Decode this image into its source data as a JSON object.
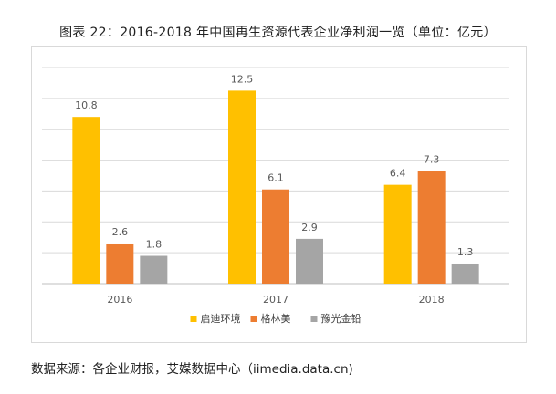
{
  "chart_data": {
    "type": "bar",
    "title": "图表 22：2016-2018 年中国再生资源代表企业净利润一览（单位：亿元）",
    "categories": [
      "2016",
      "2017",
      "2018"
    ],
    "series": [
      {
        "name": "启迪环境",
        "values": [
          10.8,
          12.5,
          6.4
        ],
        "color": "#FFC000"
      },
      {
        "name": "格林美",
        "values": [
          2.6,
          6.1,
          7.3
        ],
        "color": "#ED7D31"
      },
      {
        "name": "豫光金铅",
        "values": [
          1.8,
          2.9,
          1.3
        ],
        "color": "#A5A5A5"
      }
    ],
    "ylim": [
      0,
      14
    ],
    "y_gridlines": [
      0,
      2,
      4,
      6,
      8,
      10,
      12,
      14
    ],
    "y_axis_labels_shown": false,
    "grid": true,
    "legend_position": "bottom"
  },
  "footer": {
    "source": "数据来源：各企业财报，艾媒数据中心（iimedia.data.cn)"
  }
}
